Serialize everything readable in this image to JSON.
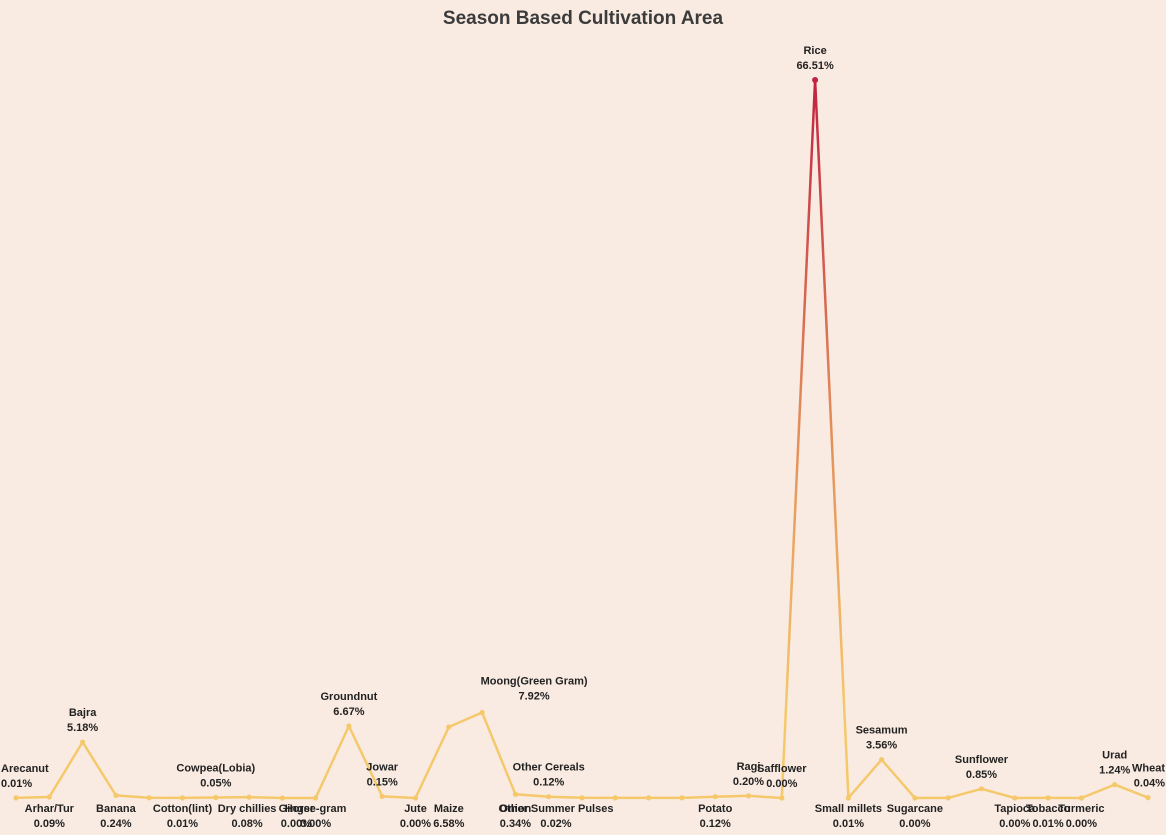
{
  "chart_data": {
    "type": "line",
    "title": "Season Based Cultivation Area",
    "xlabel": "",
    "ylabel": "",
    "ylim": [
      0,
      70
    ],
    "grid": false,
    "legend": "none",
    "colors": {
      "low": "#f5c96b",
      "high": "#c2213f"
    },
    "points": [
      {
        "name": "Arecanut",
        "label": "0.01%",
        "value": 0.01
      },
      {
        "name": "Arhar/Tur",
        "label": "0.09%",
        "value": 0.09
      },
      {
        "name": "Bajra",
        "label": "5.18%",
        "value": 5.18
      },
      {
        "name": "Banana",
        "label": "0.24%",
        "value": 0.24
      },
      {
        "name": "",
        "label": "",
        "value": 0.02
      },
      {
        "name": "Cotton(lint)",
        "label": "0.01%",
        "value": 0.01
      },
      {
        "name": "Cowpea(Lobia)",
        "label": "0.05%",
        "value": 0.05
      },
      {
        "name": "Dry chillies",
        "label": "0.08%",
        "value": 0.08
      },
      {
        "name": "Ginger",
        "label": "0.00%",
        "value": 0.0
      },
      {
        "name": "Horse-gram",
        "label": "0.00%",
        "value": 0.0
      },
      {
        "name": "Groundnut",
        "label": "6.67%",
        "value": 6.67
      },
      {
        "name": "Jowar",
        "label": "0.15%",
        "value": 0.15
      },
      {
        "name": "Jute",
        "label": "0.00%",
        "value": 0.0
      },
      {
        "name": "Maize",
        "label": "6.58%",
        "value": 6.58
      },
      {
        "name": "Moong(Green Gram)",
        "label": "7.92%",
        "value": 7.92
      },
      {
        "name": "Onion",
        "label": "0.34%",
        "value": 0.34
      },
      {
        "name": "Other Cereals",
        "label": "0.12%",
        "value": 0.12
      },
      {
        "name": "Other Summer Pulses",
        "label": "0.02%",
        "value": 0.02
      },
      {
        "name": "",
        "label": "",
        "value": 0.01
      },
      {
        "name": "",
        "label": "",
        "value": 0.01
      },
      {
        "name": "",
        "label": "",
        "value": 0.01
      },
      {
        "name": "Potato",
        "label": "0.12%",
        "value": 0.12
      },
      {
        "name": "Ragi",
        "label": "0.20%",
        "value": 0.2
      },
      {
        "name": "Safflower",
        "label": "0.00%",
        "value": 0.0
      },
      {
        "name": "Rice",
        "label": "66.51%",
        "value": 66.51
      },
      {
        "name": "Small millets",
        "label": "0.01%",
        "value": 0.01
      },
      {
        "name": "Sesamum",
        "label": "3.56%",
        "value": 3.56
      },
      {
        "name": "Sugarcane",
        "label": "0.00%",
        "value": 0.0
      },
      {
        "name": "",
        "label": "",
        "value": 0.01
      },
      {
        "name": "Sunflower",
        "label": "0.85%",
        "value": 0.85
      },
      {
        "name": "Tapioca",
        "label": "0.00%",
        "value": 0.0
      },
      {
        "name": "Tobacco",
        "label": "0.01%",
        "value": 0.01
      },
      {
        "name": "Turmeric",
        "label": "0.00%",
        "value": 0.0
      },
      {
        "name": "Urad",
        "label": "1.24%",
        "value": 1.24
      },
      {
        "name": "Wheat",
        "label": "0.04%",
        "value": 0.04
      }
    ]
  }
}
